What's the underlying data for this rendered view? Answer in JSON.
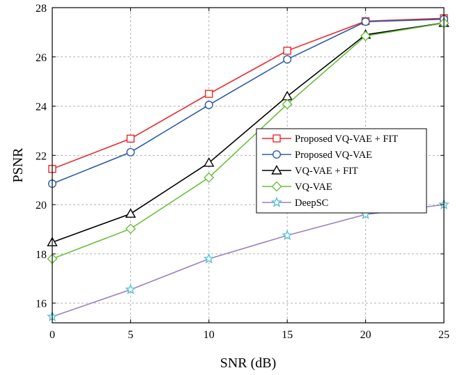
{
  "chart_data": {
    "type": "line",
    "title": "",
    "xlabel": "SNR (dB)",
    "ylabel": "PSNR",
    "xlim": [
      0,
      25
    ],
    "ylim": [
      15.2,
      28
    ],
    "xticks": [
      0,
      5,
      10,
      15,
      20,
      25
    ],
    "yticks": [
      16,
      18,
      20,
      22,
      24,
      26,
      28
    ],
    "grid": true,
    "legend_position": "center-right",
    "x": [
      0,
      5,
      10,
      15,
      20,
      25
    ],
    "series": [
      {
        "name": "Proposed VQ-VAE + FIT",
        "color": "#e8282b",
        "marker": "square",
        "values": [
          21.45,
          22.68,
          24.5,
          26.25,
          27.45,
          27.57
        ]
      },
      {
        "name": "Proposed VQ-VAE",
        "color": "#2b5ba8",
        "marker": "circle",
        "values": [
          20.85,
          22.13,
          24.05,
          25.9,
          27.43,
          27.53
        ]
      },
      {
        "name": "VQ-VAE + FIT",
        "color": "#000000",
        "marker": "triangle",
        "values": [
          18.47,
          19.63,
          21.7,
          24.4,
          26.9,
          27.38
        ]
      },
      {
        "name": "VQ-VAE",
        "color": "#6abf3c",
        "marker": "diamond",
        "values": [
          17.8,
          19.02,
          21.1,
          24.08,
          26.85,
          27.37
        ]
      },
      {
        "name": "DeepSC",
        "color": "#9b7fc0",
        "marker": "star",
        "marker_color": "#5bc0d6",
        "values": [
          15.45,
          16.55,
          17.8,
          18.75,
          19.6,
          20.0
        ]
      }
    ]
  }
}
